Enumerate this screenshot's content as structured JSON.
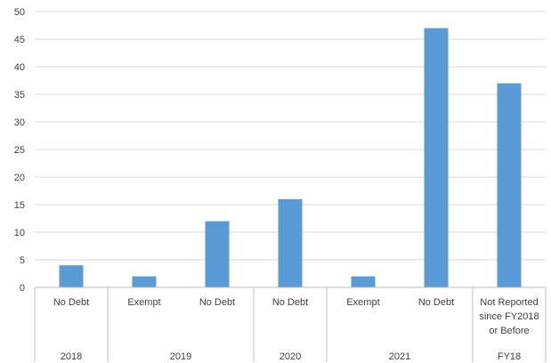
{
  "chart_data": {
    "type": "bar",
    "ylim": [
      0,
      50
    ],
    "yticks": [
      0,
      5,
      10,
      15,
      20,
      25,
      30,
      35,
      40,
      45,
      50
    ],
    "grid": true,
    "legend": "none",
    "bar_color": "#5b9bd5",
    "categories": [
      {
        "group": "2018",
        "label": "No Debt"
      },
      {
        "group": "2019",
        "label": "Exempt"
      },
      {
        "group": "2019",
        "label": "No Debt"
      },
      {
        "group": "2020",
        "label": "No Debt"
      },
      {
        "group": "2021",
        "label": "Exempt"
      },
      {
        "group": "2021",
        "label": "No Debt"
      },
      {
        "group": "FY18",
        "label": "Not Reported since FY2018 or Before"
      }
    ],
    "category_label_lines": [
      [
        "No Debt"
      ],
      [
        "Exempt"
      ],
      [
        "No Debt"
      ],
      [
        "No Debt"
      ],
      [
        "Exempt"
      ],
      [
        "No Debt"
      ],
      [
        "Not Reported",
        "since FY2018",
        "or Before"
      ]
    ],
    "groups": [
      {
        "label": "2018",
        "count": 1
      },
      {
        "label": "2019",
        "count": 2
      },
      {
        "label": "2020",
        "count": 1
      },
      {
        "label": "2021",
        "count": 2
      },
      {
        "label": "FY18",
        "count": 1
      }
    ],
    "values": [
      4,
      2,
      12,
      16,
      2,
      47,
      37
    ]
  }
}
